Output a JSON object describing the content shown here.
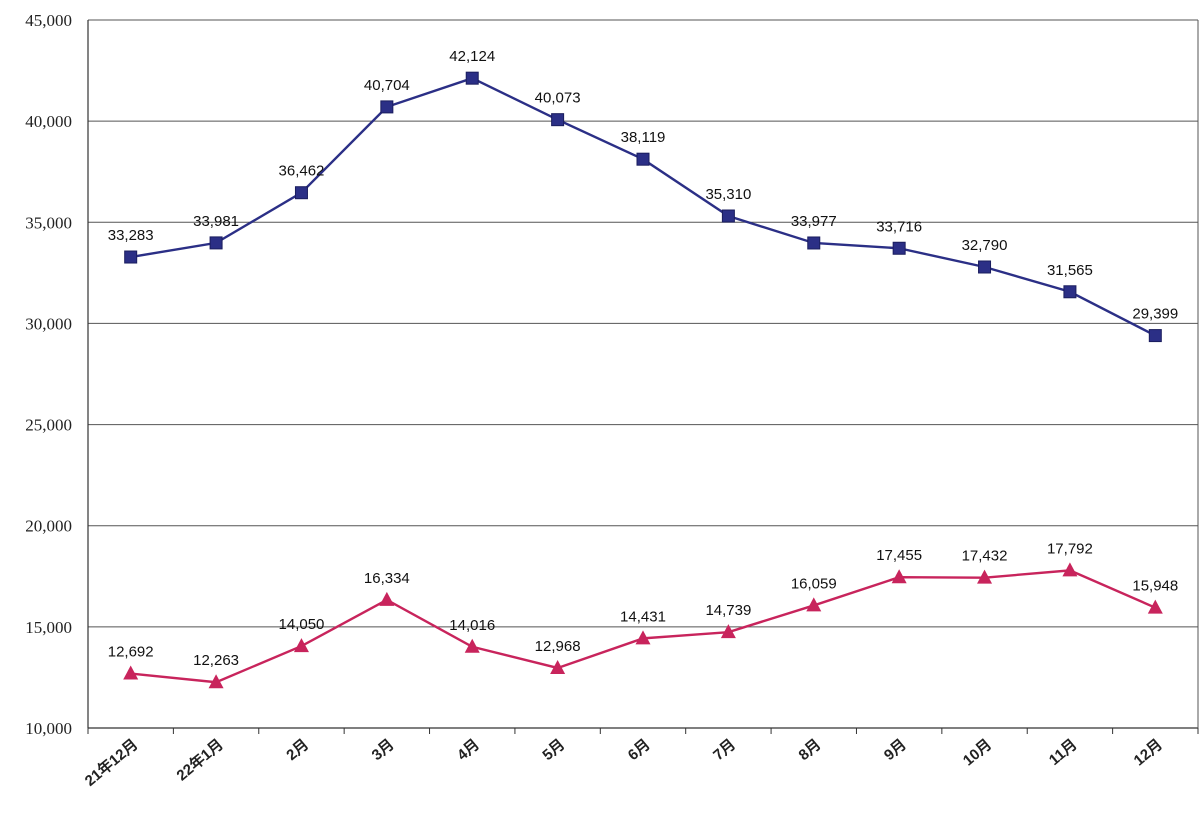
{
  "chart_data": {
    "type": "line",
    "categories": [
      "21年12月",
      "22年1月",
      "2月",
      "3月",
      "4月",
      "5月",
      "6月",
      "7月",
      "8月",
      "9月",
      "10月",
      "11月",
      "12月"
    ],
    "series": [
      {
        "marker": "square",
        "color": "#2b2f86",
        "values": [
          33283,
          33981,
          36462,
          40704,
          42124,
          40073,
          38119,
          35310,
          33977,
          33716,
          32790,
          31565,
          29399
        ],
        "labels": [
          "33,283",
          "33,981",
          "36,462",
          "40,704",
          "42,124",
          "40,073",
          "38,119",
          "35,310",
          "33,977",
          "33,716",
          "32,790",
          "31,565",
          "29,399"
        ]
      },
      {
        "marker": "triangle",
        "color": "#c8245c",
        "values": [
          12692,
          12263,
          14050,
          16334,
          14016,
          12968,
          14431,
          14739,
          16059,
          17455,
          17432,
          17792,
          15948
        ],
        "labels": [
          "12,692",
          "12,263",
          "14,050",
          "16,334",
          "14,016",
          "12,968",
          "14,431",
          "14,739",
          "16,059",
          "17,455",
          "17,432",
          "17,792",
          "15,948"
        ]
      }
    ],
    "ylim": [
      10000,
      45000
    ],
    "yticks": [
      10000,
      15000,
      20000,
      25000,
      30000,
      35000,
      40000,
      45000
    ],
    "ytick_labels": [
      "10,000",
      "15,000",
      "20,000",
      "25,000",
      "30,000",
      "35,000",
      "40,000",
      "45,000"
    ],
    "grid": true,
    "legend": "none"
  }
}
